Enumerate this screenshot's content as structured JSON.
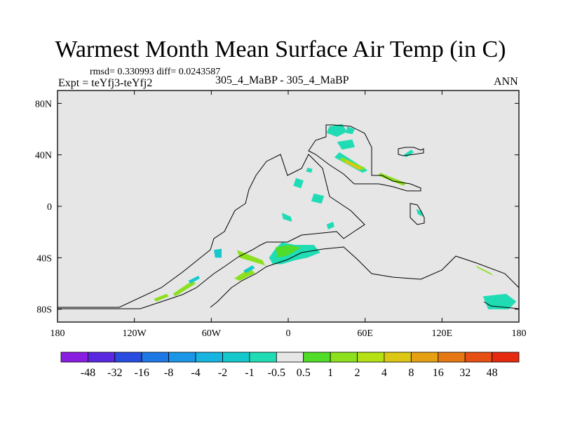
{
  "header": {
    "title": "Warmest Month Mean Surface Air Temp (in C)",
    "stats": "rmsd= 0.330993  diff= 0.0243587",
    "expt": "Expt = teYfj3-teYfj2",
    "center_label": "305_4_MaBP - 305_4_MaBP",
    "season": "ANN"
  },
  "chart_data": {
    "type": "heatmap",
    "title": "Warmest Month Mean Surface Air Temp (in C)",
    "x_axis": {
      "label": "longitude",
      "range": [
        -180,
        180
      ],
      "ticks": [
        {
          "value": -180,
          "label": "180"
        },
        {
          "value": -120,
          "label": "120W"
        },
        {
          "value": -60,
          "label": "60W"
        },
        {
          "value": 0,
          "label": "0"
        },
        {
          "value": 60,
          "label": "60E"
        },
        {
          "value": 120,
          "label": "120E"
        },
        {
          "value": 180,
          "label": "180"
        }
      ]
    },
    "y_axis": {
      "label": "latitude",
      "range": [
        -90,
        90
      ],
      "ticks": [
        {
          "value": 80,
          "label": "80N"
        },
        {
          "value": 40,
          "label": "40N"
        },
        {
          "value": 0,
          "label": "0"
        },
        {
          "value": -40,
          "label": "40S"
        },
        {
          "value": -80,
          "label": "80S"
        }
      ]
    },
    "colorbar": {
      "levels": [
        "-48",
        "-32",
        "-16",
        "-8",
        "-4",
        "-2",
        "-1",
        "-0.5",
        "0.5",
        "1",
        "2",
        "4",
        "8",
        "16",
        "32",
        "48"
      ],
      "colors": [
        "#8a1ee0",
        "#5a28e0",
        "#2a4be0",
        "#1e78e6",
        "#1b96e6",
        "#18b4e0",
        "#14c8cc",
        "#20dcb4",
        "#e6e6e6",
        "#50dc28",
        "#8ce01e",
        "#b4e014",
        "#dcc814",
        "#e6a014",
        "#e67814",
        "#e65014",
        "#e62a10"
      ]
    },
    "background_color": "#e6e6e6",
    "regions": [
      {
        "name": "alaska-coast",
        "color": "#20dcb4",
        "points": [
          [
            -10,
            -33
          ],
          [
            -5,
            -28
          ],
          [
            5,
            -30
          ],
          [
            20,
            -30
          ],
          [
            25,
            -36
          ],
          [
            15,
            -40
          ],
          [
            5,
            -42
          ],
          [
            -5,
            -45
          ],
          [
            -12,
            -45
          ],
          [
            -15,
            -40
          ]
        ]
      },
      {
        "name": "alaska-green",
        "color": "#50dc28",
        "points": [
          [
            -10,
            -32
          ],
          [
            0,
            -30
          ],
          [
            10,
            -32
          ],
          [
            0,
            -38
          ],
          [
            -8,
            -40
          ]
        ]
      },
      {
        "name": "aleutian-band-1",
        "color": "#8ce01e",
        "points": [
          [
            -40,
            -34
          ],
          [
            -20,
            -42
          ],
          [
            -18,
            -46
          ],
          [
            -38,
            -40
          ]
        ]
      },
      {
        "name": "aleutian-band-2",
        "color": "#8ce01e",
        "points": [
          [
            -42,
            -56
          ],
          [
            -30,
            -48
          ],
          [
            -26,
            -52
          ],
          [
            -38,
            -58
          ]
        ]
      },
      {
        "name": "aleutian-teal",
        "color": "#14c8cc",
        "points": [
          [
            -35,
            -50
          ],
          [
            -28,
            -46
          ],
          [
            -26,
            -48
          ],
          [
            -33,
            -52
          ]
        ]
      },
      {
        "name": "west-arc-1",
        "color": "#8ce01e",
        "points": [
          [
            -90,
            -68
          ],
          [
            -75,
            -58
          ],
          [
            -72,
            -60
          ],
          [
            -88,
            -70
          ]
        ]
      },
      {
        "name": "west-arc-2",
        "color": "#8ce01e",
        "points": [
          [
            -105,
            -72
          ],
          [
            -95,
            -68
          ],
          [
            -93,
            -70
          ],
          [
            -103,
            -74
          ]
        ]
      },
      {
        "name": "west-arc-teal",
        "color": "#14c8cc",
        "points": [
          [
            -78,
            -58
          ],
          [
            -70,
            -54
          ],
          [
            -69,
            -56
          ],
          [
            -76,
            -60
          ]
        ]
      },
      {
        "name": "west-coast-teal",
        "color": "#14c8cc",
        "points": [
          [
            -58,
            -34
          ],
          [
            -52,
            -33
          ],
          [
            -52,
            -40
          ],
          [
            -57,
            -40
          ]
        ]
      },
      {
        "name": "mid-teal-1",
        "color": "#20dcb4",
        "points": [
          [
            4,
            16
          ],
          [
            10,
            14
          ],
          [
            12,
            20
          ],
          [
            6,
            22
          ]
        ]
      },
      {
        "name": "mid-teal-2",
        "color": "#20dcb4",
        "points": [
          [
            18,
            4
          ],
          [
            26,
            2
          ],
          [
            28,
            8
          ],
          [
            20,
            10
          ]
        ]
      },
      {
        "name": "mid-teal-3",
        "color": "#20dcb4",
        "points": [
          [
            -5,
            -5
          ],
          [
            2,
            -8
          ],
          [
            3,
            -12
          ],
          [
            -4,
            -10
          ]
        ]
      },
      {
        "name": "mid-teal-4",
        "color": "#20dcb4",
        "points": [
          [
            30,
            -14
          ],
          [
            35,
            -12
          ],
          [
            36,
            -16
          ],
          [
            31,
            -18
          ]
        ]
      },
      {
        "name": "mid-teal-5",
        "color": "#20dcb4",
        "points": [
          [
            14,
            27
          ],
          [
            18,
            26
          ],
          [
            19,
            29
          ],
          [
            15,
            30
          ]
        ]
      },
      {
        "name": "north-blob-1",
        "color": "#20dcb4",
        "points": [
          [
            32,
            62
          ],
          [
            42,
            64
          ],
          [
            46,
            58
          ],
          [
            38,
            54
          ],
          [
            30,
            57
          ]
        ]
      },
      {
        "name": "north-blob-2",
        "color": "#20dcb4",
        "points": [
          [
            38,
            50
          ],
          [
            50,
            52
          ],
          [
            52,
            46
          ],
          [
            42,
            44
          ]
        ]
      },
      {
        "name": "north-blob-3",
        "color": "#20dcb4",
        "points": [
          [
            46,
            62
          ],
          [
            52,
            60
          ],
          [
            50,
            56
          ],
          [
            45,
            57
          ]
        ]
      },
      {
        "name": "north-band-teal",
        "color": "#20dcb4",
        "points": [
          [
            36,
            38
          ],
          [
            58,
            26
          ],
          [
            62,
            28
          ],
          [
            40,
            42
          ]
        ]
      },
      {
        "name": "north-band-green",
        "color": "#8ce01e",
        "points": [
          [
            40,
            36
          ],
          [
            58,
            28
          ],
          [
            60,
            30
          ],
          [
            42,
            38
          ]
        ]
      },
      {
        "name": "north-yellow",
        "color": "#dcc814",
        "points": [
          [
            44,
            34
          ],
          [
            56,
            28
          ],
          [
            57,
            30
          ],
          [
            45,
            36
          ]
        ]
      },
      {
        "name": "ne-band",
        "color": "#8ce01e",
        "points": [
          [
            70,
            24
          ],
          [
            90,
            16
          ],
          [
            92,
            18
          ],
          [
            72,
            26
          ]
        ]
      },
      {
        "name": "ne-teal",
        "color": "#20dcb4",
        "points": [
          [
            90,
            40
          ],
          [
            96,
            44
          ],
          [
            98,
            42
          ],
          [
            92,
            38
          ]
        ]
      },
      {
        "name": "ne-small",
        "color": "#20dcb4",
        "points": [
          [
            100,
            -2
          ],
          [
            104,
            -4
          ],
          [
            105,
            -8
          ],
          [
            101,
            -6
          ]
        ]
      },
      {
        "name": "east-band-1",
        "color": "#8ce01e",
        "points": [
          [
            146,
            -46
          ],
          [
            158,
            -52
          ],
          [
            160,
            -54
          ],
          [
            148,
            -48
          ]
        ]
      },
      {
        "name": "east-band-2",
        "color": "#50dc28",
        "points": [
          [
            156,
            -54
          ],
          [
            164,
            -62
          ],
          [
            166,
            -64
          ],
          [
            158,
            -56
          ]
        ]
      },
      {
        "name": "se-blob",
        "color": "#20dcb4",
        "points": [
          [
            152,
            -70
          ],
          [
            170,
            -68
          ],
          [
            178,
            -74
          ],
          [
            172,
            -80
          ],
          [
            156,
            -80
          ]
        ]
      }
    ]
  }
}
